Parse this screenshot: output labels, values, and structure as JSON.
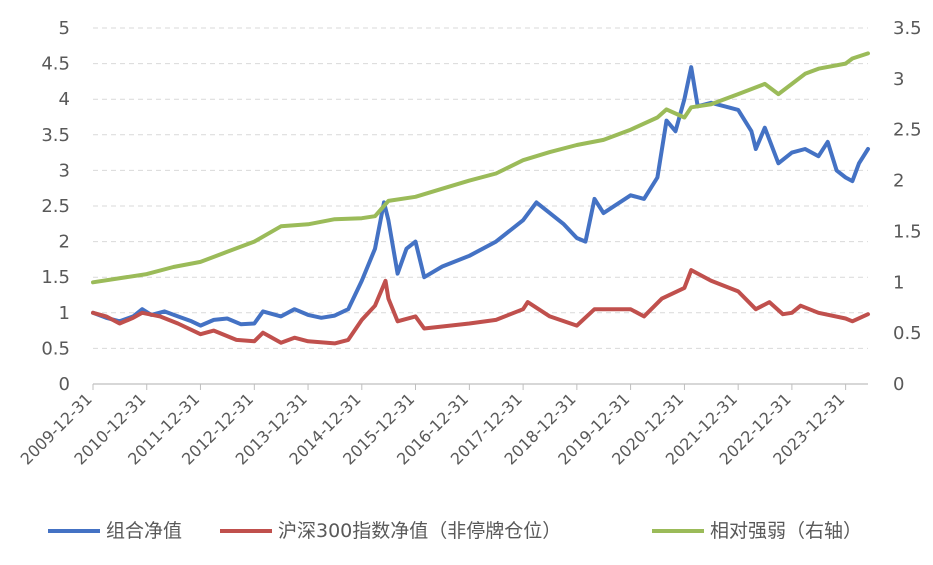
{
  "chart_data": {
    "type": "line",
    "x_dates": [
      "2009-12-31",
      "2010-12-31",
      "2011-12-31",
      "2012-12-31",
      "2013-12-31",
      "2014-12-31",
      "2015-12-31",
      "2016-12-31",
      "2017-12-31",
      "2018-12-31",
      "2019-12-31",
      "2020-12-31",
      "2021-12-31",
      "2022-12-31",
      "2023-12-31"
    ],
    "x_range": [
      "2009-12-31",
      "2024-05-31"
    ],
    "y_left": {
      "ticks": [
        "0",
        "0.5",
        "1",
        "1.5",
        "2",
        "2.5",
        "3",
        "3.5",
        "4",
        "4.5",
        "5"
      ],
      "range": [
        0,
        5
      ]
    },
    "y_right": {
      "ticks": [
        "0",
        "0.5",
        "1",
        "1.5",
        "2",
        "2.5",
        "3",
        "3.5"
      ],
      "range": [
        0,
        3.5
      ]
    },
    "grid": true,
    "legend_position": "bottom",
    "series": [
      {
        "name": "组合净值",
        "axis": "left",
        "color": "#4472C4",
        "points": [
          [
            "2009-12-31",
            1.0
          ],
          [
            "2010-03-31",
            0.93
          ],
          [
            "2010-06-30",
            0.88
          ],
          [
            "2010-09-30",
            0.95
          ],
          [
            "2010-11-30",
            1.05
          ],
          [
            "2011-01-31",
            0.97
          ],
          [
            "2011-04-30",
            1.02
          ],
          [
            "2011-07-31",
            0.95
          ],
          [
            "2011-10-31",
            0.88
          ],
          [
            "2011-12-31",
            0.82
          ],
          [
            "2012-03-31",
            0.9
          ],
          [
            "2012-06-30",
            0.92
          ],
          [
            "2012-09-30",
            0.84
          ],
          [
            "2012-12-31",
            0.85
          ],
          [
            "2013-02-28",
            1.02
          ],
          [
            "2013-06-30",
            0.95
          ],
          [
            "2013-09-30",
            1.05
          ],
          [
            "2013-12-31",
            0.97
          ],
          [
            "2014-03-31",
            0.93
          ],
          [
            "2014-06-30",
            0.96
          ],
          [
            "2014-09-30",
            1.05
          ],
          [
            "2014-12-31",
            1.45
          ],
          [
            "2015-03-31",
            1.9
          ],
          [
            "2015-05-31",
            2.55
          ],
          [
            "2015-06-30",
            2.3
          ],
          [
            "2015-08-31",
            1.55
          ],
          [
            "2015-10-31",
            1.9
          ],
          [
            "2015-12-31",
            2.0
          ],
          [
            "2016-02-28",
            1.5
          ],
          [
            "2016-06-30",
            1.65
          ],
          [
            "2016-12-31",
            1.8
          ],
          [
            "2017-06-30",
            2.0
          ],
          [
            "2017-12-31",
            2.3
          ],
          [
            "2018-03-31",
            2.55
          ],
          [
            "2018-06-30",
            2.4
          ],
          [
            "2018-09-30",
            2.25
          ],
          [
            "2018-12-31",
            2.05
          ],
          [
            "2019-02-28",
            2.0
          ],
          [
            "2019-04-30",
            2.6
          ],
          [
            "2019-06-30",
            2.4
          ],
          [
            "2019-12-31",
            2.65
          ],
          [
            "2020-03-31",
            2.6
          ],
          [
            "2020-06-30",
            2.9
          ],
          [
            "2020-08-31",
            3.7
          ],
          [
            "2020-10-31",
            3.55
          ],
          [
            "2020-12-31",
            4.0
          ],
          [
            "2021-02-15",
            4.45
          ],
          [
            "2021-03-31",
            3.9
          ],
          [
            "2021-06-30",
            3.95
          ],
          [
            "2021-09-30",
            3.9
          ],
          [
            "2021-12-31",
            3.85
          ],
          [
            "2022-03-31",
            3.55
          ],
          [
            "2022-04-30",
            3.3
          ],
          [
            "2022-06-30",
            3.6
          ],
          [
            "2022-09-30",
            3.1
          ],
          [
            "2022-12-31",
            3.25
          ],
          [
            "2023-03-31",
            3.3
          ],
          [
            "2023-06-30",
            3.2
          ],
          [
            "2023-08-31",
            3.4
          ],
          [
            "2023-10-31",
            3.0
          ],
          [
            "2023-12-31",
            2.9
          ],
          [
            "2024-02-15",
            2.85
          ],
          [
            "2024-03-31",
            3.1
          ],
          [
            "2024-05-31",
            3.3
          ]
        ]
      },
      {
        "name": "沪深300指数净值（非停牌仓位）",
        "axis": "left",
        "color": "#C0504D",
        "points": [
          [
            "2009-12-31",
            1.0
          ],
          [
            "2010-03-31",
            0.95
          ],
          [
            "2010-06-30",
            0.85
          ],
          [
            "2010-09-30",
            0.93
          ],
          [
            "2010-11-30",
            1.0
          ],
          [
            "2011-03-31",
            0.95
          ],
          [
            "2011-07-31",
            0.85
          ],
          [
            "2011-12-31",
            0.7
          ],
          [
            "2012-03-31",
            0.75
          ],
          [
            "2012-08-31",
            0.62
          ],
          [
            "2012-12-31",
            0.6
          ],
          [
            "2013-02-28",
            0.72
          ],
          [
            "2013-06-30",
            0.58
          ],
          [
            "2013-09-30",
            0.65
          ],
          [
            "2013-12-31",
            0.6
          ],
          [
            "2014-06-30",
            0.57
          ],
          [
            "2014-09-30",
            0.62
          ],
          [
            "2014-12-31",
            0.9
          ],
          [
            "2015-03-31",
            1.1
          ],
          [
            "2015-06-10",
            1.45
          ],
          [
            "2015-06-30",
            1.2
          ],
          [
            "2015-08-31",
            0.88
          ],
          [
            "2015-12-31",
            0.95
          ],
          [
            "2016-02-28",
            0.78
          ],
          [
            "2016-12-31",
            0.85
          ],
          [
            "2017-06-30",
            0.9
          ],
          [
            "2017-12-31",
            1.05
          ],
          [
            "2018-01-31",
            1.15
          ],
          [
            "2018-06-30",
            0.95
          ],
          [
            "2018-12-31",
            0.82
          ],
          [
            "2019-04-30",
            1.05
          ],
          [
            "2019-12-31",
            1.05
          ],
          [
            "2020-03-31",
            0.95
          ],
          [
            "2020-07-31",
            1.2
          ],
          [
            "2020-12-31",
            1.35
          ],
          [
            "2021-02-15",
            1.6
          ],
          [
            "2021-06-30",
            1.45
          ],
          [
            "2021-12-31",
            1.3
          ],
          [
            "2022-04-30",
            1.05
          ],
          [
            "2022-07-31",
            1.15
          ],
          [
            "2022-10-31",
            0.98
          ],
          [
            "2022-12-31",
            1.0
          ],
          [
            "2023-02-28",
            1.1
          ],
          [
            "2023-06-30",
            1.0
          ],
          [
            "2023-12-31",
            0.92
          ],
          [
            "2024-02-15",
            0.88
          ],
          [
            "2024-05-31",
            0.98
          ]
        ]
      },
      {
        "name": "相对强弱（右轴）",
        "axis": "right",
        "color": "#9BBB59",
        "points": [
          [
            "2009-12-31",
            1.0
          ],
          [
            "2010-12-31",
            1.08
          ],
          [
            "2011-06-30",
            1.15
          ],
          [
            "2011-12-31",
            1.2
          ],
          [
            "2012-06-30",
            1.3
          ],
          [
            "2012-12-31",
            1.4
          ],
          [
            "2013-06-30",
            1.55
          ],
          [
            "2013-12-31",
            1.57
          ],
          [
            "2014-06-30",
            1.62
          ],
          [
            "2014-12-31",
            1.63
          ],
          [
            "2015-03-31",
            1.65
          ],
          [
            "2015-06-30",
            1.8
          ],
          [
            "2015-12-31",
            1.84
          ],
          [
            "2016-06-30",
            1.92
          ],
          [
            "2016-12-31",
            2.0
          ],
          [
            "2017-06-30",
            2.07
          ],
          [
            "2017-12-31",
            2.2
          ],
          [
            "2018-06-30",
            2.28
          ],
          [
            "2018-12-31",
            2.35
          ],
          [
            "2019-06-30",
            2.4
          ],
          [
            "2019-12-31",
            2.5
          ],
          [
            "2020-06-30",
            2.62
          ],
          [
            "2020-08-31",
            2.7
          ],
          [
            "2020-12-31",
            2.62
          ],
          [
            "2021-02-15",
            2.72
          ],
          [
            "2021-06-30",
            2.75
          ],
          [
            "2021-12-31",
            2.85
          ],
          [
            "2022-06-30",
            2.95
          ],
          [
            "2022-09-30",
            2.85
          ],
          [
            "2022-12-31",
            2.95
          ],
          [
            "2023-03-31",
            3.05
          ],
          [
            "2023-06-30",
            3.1
          ],
          [
            "2023-12-31",
            3.15
          ],
          [
            "2024-02-15",
            3.2
          ],
          [
            "2024-05-31",
            3.25
          ]
        ]
      }
    ]
  }
}
